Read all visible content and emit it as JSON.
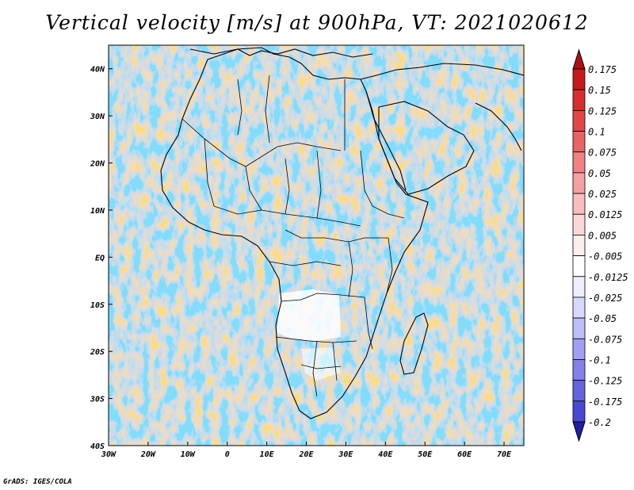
{
  "title": "Vertical velocity [m/s] at 900hPa, VT: 2021020612",
  "footer": "GrADS: IGES/COLA",
  "map": {
    "lon_range": [
      -30,
      75
    ],
    "lat_range": [
      -40,
      45
    ],
    "lat_labels": [
      {
        "value": 40,
        "label": "40N"
      },
      {
        "value": 30,
        "label": "30N"
      },
      {
        "value": 20,
        "label": "20N"
      },
      {
        "value": 10,
        "label": "10N"
      },
      {
        "value": 0,
        "label": "EQ"
      },
      {
        "value": -10,
        "label": "10S"
      },
      {
        "value": -20,
        "label": "20S"
      },
      {
        "value": -30,
        "label": "30S"
      },
      {
        "value": -40,
        "label": "40S"
      }
    ],
    "lon_labels": [
      {
        "value": -30,
        "label": "30W"
      },
      {
        "value": -20,
        "label": "20W"
      },
      {
        "value": -10,
        "label": "10W"
      },
      {
        "value": 0,
        "label": "0"
      },
      {
        "value": 10,
        "label": "10E"
      },
      {
        "value": 20,
        "label": "20E"
      },
      {
        "value": 30,
        "label": "30E"
      },
      {
        "value": 40,
        "label": "40E"
      },
      {
        "value": 50,
        "label": "50E"
      },
      {
        "value": 60,
        "label": "60E"
      },
      {
        "value": 70,
        "label": "70E"
      }
    ]
  },
  "colorbar": {
    "levels": [
      {
        "label": "0.175",
        "color": "#c41a1a"
      },
      {
        "label": "0.15",
        "color": "#d62e2e"
      },
      {
        "label": "0.125",
        "color": "#e04848"
      },
      {
        "label": "0.1",
        "color": "#e86464"
      },
      {
        "label": "0.075",
        "color": "#ef8282"
      },
      {
        "label": "0.05",
        "color": "#f4a0a0"
      },
      {
        "label": "0.025",
        "color": "#f8bebe"
      },
      {
        "label": "0.0125",
        "color": "#fbd8d8"
      },
      {
        "label": "0.005",
        "color": "#fdeeee"
      },
      {
        "label": "-0.005",
        "color": "#ffffff"
      },
      {
        "label": "-0.0125",
        "color": "#eeeefd"
      },
      {
        "label": "-0.025",
        "color": "#d8d8fb"
      },
      {
        "label": "-0.05",
        "color": "#bebef8"
      },
      {
        "label": "-0.075",
        "color": "#a0a0f2"
      },
      {
        "label": "-0.1",
        "color": "#8282ea"
      },
      {
        "label": "-0.125",
        "color": "#6464e0"
      },
      {
        "label": "-0.175",
        "color": "#4848d2"
      },
      {
        "label": "-0.2",
        "color": "#2e2ec0"
      }
    ],
    "top_arrow_color": "#b01010",
    "bottom_arrow_color": "#1e1ea8"
  }
}
